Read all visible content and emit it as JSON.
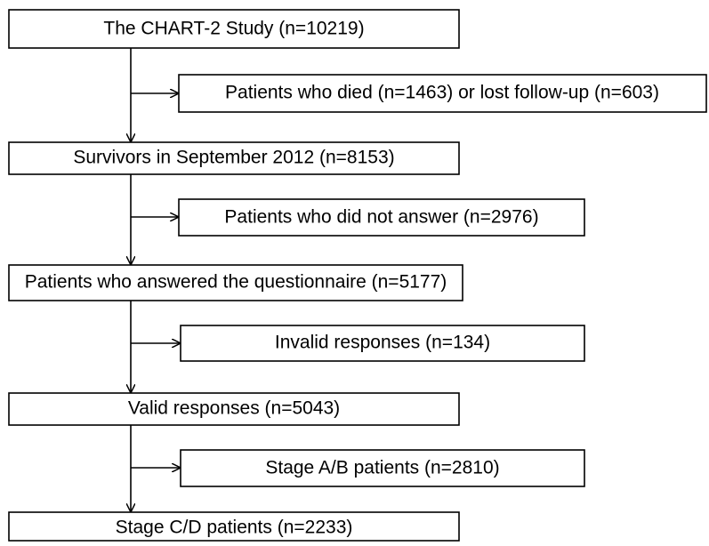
{
  "nodes": [
    {
      "label": "The CHART-2 Study (n=10219)"
    },
    {
      "label": "Survivors in September 2012 (n=8153)"
    },
    {
      "label": "Patients who answered the questionnaire (n=5177)"
    },
    {
      "label": "Valid responses (n=5043)"
    },
    {
      "label": "Stage C/D patients (n=2233)"
    }
  ],
  "exclusions": [
    {
      "label": "Patients who died (n=1463) or lost follow-up (n=603)"
    },
    {
      "label": "Patients who did not answer (n=2976)"
    },
    {
      "label": "Invalid responses (n=134)"
    },
    {
      "label": "Stage A/B patients (n=2810)"
    }
  ]
}
